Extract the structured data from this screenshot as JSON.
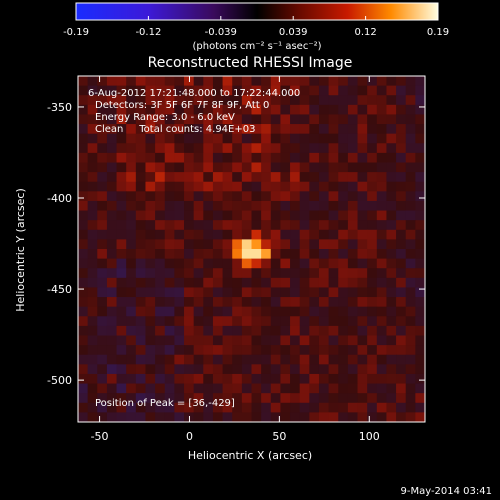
{
  "chart_data": {
    "type": "heatmap",
    "title": "Reconstructed RHESSI Image",
    "xlabel": "Heliocentric X (arcsec)",
    "ylabel": "Heliocentric Y (arcsec)",
    "xlim": [
      -62,
      131
    ],
    "ylim": [
      -523,
      -333
    ],
    "xticks": [
      -50,
      0,
      50,
      100
    ],
    "yticks": [
      -350,
      -400,
      -450,
      -500
    ],
    "peak": [
      36,
      -429
    ],
    "colorbar": {
      "range": [
        -0.19,
        0.19
      ],
      "ticks": [
        "-0.19",
        "-0.12",
        "-0.039",
        "0.039",
        "0.12",
        "0.19"
      ],
      "unit_label": "(photons cm⁻² s⁻¹ asec⁻²)"
    },
    "annotations": [
      "6-Aug-2012 17:21:48.000 to 17:22:44.000",
      "Detectors: 3F 5F 6F 7F 8F 9F, Att 0",
      "Energy Range: 3.0 - 6.0 keV",
      "Clean     Total counts: 4.94E+03"
    ],
    "peak_label": "Position of Peak = [36,-429]"
  },
  "footer": {
    "date": "9-May-2014 03:41"
  }
}
